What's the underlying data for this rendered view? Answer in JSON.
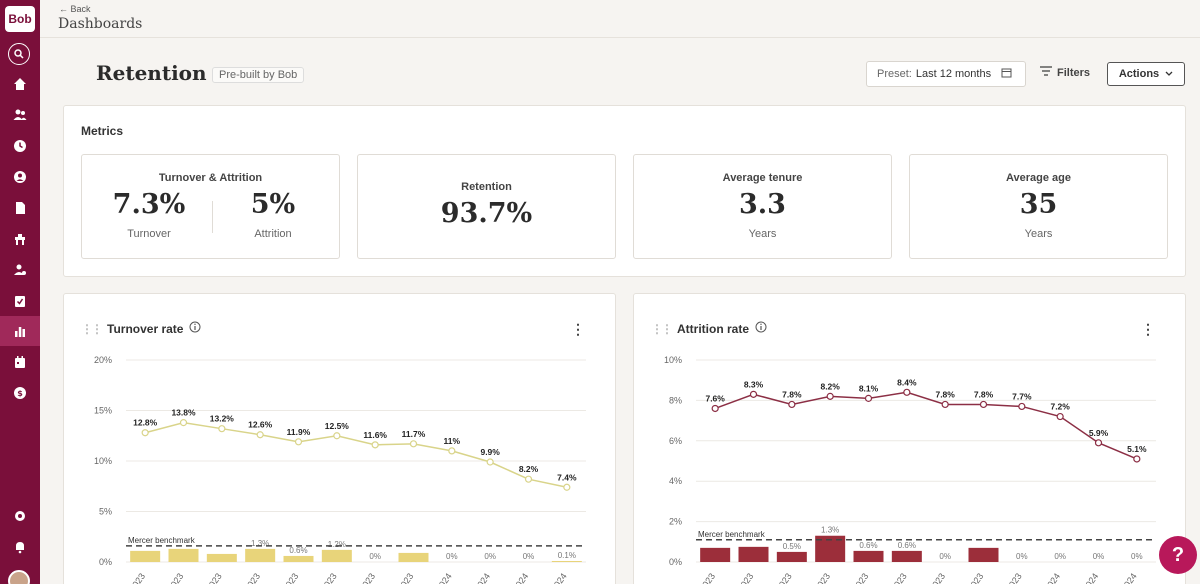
{
  "app": {
    "logo": "Bob"
  },
  "sidebar": {
    "items": [
      "search-icon",
      "home-icon",
      "people-icon",
      "clock-icon",
      "profile-icon",
      "document-icon",
      "desk-icon",
      "person-gear-icon",
      "checklist-icon",
      "analytics-icon",
      "calendar-icon",
      "dollar-icon",
      "settings-icon",
      "notification-icon"
    ],
    "active": "analytics-icon"
  },
  "header": {
    "back": "Back",
    "breadcrumb": "Dashboards"
  },
  "page": {
    "title": "Retention",
    "badge": "Pre-built by Bob"
  },
  "toolbar": {
    "preset_label": "Preset:",
    "preset_value": "Last 12 months",
    "filters": "Filters",
    "actions": "Actions"
  },
  "metrics": {
    "title": "Metrics",
    "cards": [
      {
        "title": "Turnover & Attrition",
        "values": [
          {
            "value": "7.3%",
            "label": "Turnover"
          },
          {
            "value": "5%",
            "label": "Attrition"
          }
        ]
      },
      {
        "title": "Retention",
        "value": "93.7%"
      },
      {
        "title": "Average tenure",
        "value": "3.3",
        "label": "Years"
      },
      {
        "title": "Average age",
        "value": "35",
        "label": "Years"
      }
    ]
  },
  "charts": {
    "turnover_title": "Turnover rate",
    "attrition_title": "Attrition rate"
  },
  "chart_data": [
    {
      "type": "line",
      "title": "Turnover rate",
      "ylim": [
        0,
        20
      ],
      "yticks": [
        "0%",
        "5%",
        "10%",
        "15%",
        "20%"
      ],
      "xtick_labels": [
        "023",
        "023",
        "023",
        "023",
        "023",
        "023",
        "023",
        "023",
        "024",
        "024",
        "024",
        "024"
      ],
      "series": [
        {
          "values": [
            12.8,
            13.8,
            13.2,
            12.6,
            11.9,
            12.5,
            11.6,
            11.7,
            11,
            9.9,
            8.2,
            7.4
          ],
          "labels": [
            "12.8%",
            "13.8%",
            "13.2%",
            "12.6%",
            "11.9%",
            "12.5%",
            "11.6%",
            "11.7%",
            "11%",
            "9.9%",
            "8.2%",
            "7.4%"
          ]
        }
      ],
      "bars": {
        "values": [
          1.1,
          1.3,
          0.8,
          1.3,
          0.6,
          1.2,
          0,
          0.9,
          0,
          0,
          0,
          0.1
        ],
        "labels": [
          "",
          "",
          "",
          "1.3%",
          "0.6%",
          "1.2%",
          "0%",
          "",
          "0%",
          "0%",
          "0%",
          "0.1%"
        ]
      },
      "benchmark": {
        "label": "Mercer benchmark",
        "value": 1.6
      },
      "line_color": "#d9d48a",
      "bar_color": "#e8d47a"
    },
    {
      "type": "line",
      "title": "Attrition rate",
      "ylim": [
        0,
        10
      ],
      "yticks": [
        "0%",
        "2%",
        "4%",
        "6%",
        "8%",
        "10%"
      ],
      "xtick_labels": [
        "023",
        "023",
        "023",
        "023",
        "023",
        "023",
        "023",
        "023",
        "023",
        "024",
        "024",
        "024"
      ],
      "series": [
        {
          "values": [
            7.6,
            8.3,
            7.8,
            8.2,
            8.1,
            8.4,
            7.8,
            7.8,
            7.7,
            7.2,
            5.9,
            5.1
          ],
          "labels": [
            "7.6%",
            "8.3%",
            "7.8%",
            "8.2%",
            "8.1%",
            "8.4%",
            "7.8%",
            "7.8%",
            "7.7%",
            "7.2%",
            "5.9%",
            "5.1%"
          ]
        }
      ],
      "bars": {
        "values": [
          0.7,
          0.75,
          0.5,
          1.3,
          0.55,
          0.55,
          0,
          0.7,
          0,
          0,
          0,
          0
        ],
        "labels": [
          "",
          "",
          "0.5%",
          "1.3%",
          "0.6%",
          "0.6%",
          "0%",
          "",
          "0%",
          "0%",
          "0%",
          "0%"
        ]
      },
      "benchmark": {
        "label": "Mercer benchmark",
        "value": 1.1
      },
      "line_color": "#8c2f45",
      "bar_color": "#9c2e3a"
    }
  ],
  "help": {
    "label": "?"
  }
}
